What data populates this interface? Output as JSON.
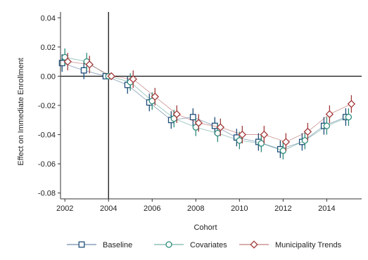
{
  "chart_data": {
    "type": "line",
    "xlabel": "Cohort",
    "ylabel": "Effect on Immediate Enrollment",
    "xlim": [
      2001.8,
      2015.6
    ],
    "ylim": [
      -0.084,
      0.044
    ],
    "xticks": [
      2002,
      2004,
      2006,
      2008,
      2010,
      2012,
      2014
    ],
    "yticks": [
      0.04,
      0.02,
      0.0,
      -0.02,
      -0.04,
      -0.06,
      -0.08
    ],
    "xtick_labels": [
      "2002",
      "2004",
      "2006",
      "2008",
      "2010",
      "2012",
      "2014"
    ],
    "ytick_labels": [
      "0.04",
      "0.02",
      "0.00",
      "-0.02",
      "-0.04",
      "-0.06",
      "-0.08"
    ],
    "reference_lines": {
      "vertical_x": 2004,
      "horizontal_y": 0
    },
    "grid": false,
    "legend_position": "bottom",
    "series": [
      {
        "name": "Baseline",
        "marker": "square",
        "color": "#1f4e79",
        "x": [
          2002,
          2003,
          2004,
          2005,
          2006,
          2007,
          2008,
          2009,
          2010,
          2011,
          2012,
          2013,
          2014,
          2015
        ],
        "y": [
          0.009,
          0.004,
          0.0,
          -0.006,
          -0.018,
          -0.03,
          -0.028,
          -0.034,
          -0.042,
          -0.045,
          -0.05,
          -0.045,
          -0.034,
          -0.028
        ],
        "ci": [
          0.006,
          0.006,
          0.0,
          0.006,
          0.006,
          0.006,
          0.006,
          0.006,
          0.006,
          0.006,
          0.006,
          0.006,
          0.006,
          0.006
        ]
      },
      {
        "name": "Covariates",
        "marker": "circle",
        "color": "#2e8b7a",
        "x": [
          2002,
          2003,
          2004,
          2005,
          2006,
          2007,
          2008,
          2009,
          2010,
          2011,
          2012,
          2013,
          2014,
          2015
        ],
        "y": [
          0.013,
          0.01,
          0.0,
          -0.004,
          -0.017,
          -0.029,
          -0.035,
          -0.039,
          -0.044,
          -0.046,
          -0.051,
          -0.044,
          -0.034,
          -0.028
        ],
        "ci": [
          0.006,
          0.006,
          0.0,
          0.006,
          0.006,
          0.006,
          0.006,
          0.006,
          0.006,
          0.006,
          0.006,
          0.006,
          0.006,
          0.006
        ]
      },
      {
        "name": "Municipality Trends",
        "marker": "diamond",
        "color": "#a33a3a",
        "x": [
          2002,
          2003,
          2004,
          2005,
          2006,
          2007,
          2008,
          2009,
          2010,
          2011,
          2012,
          2013,
          2014,
          2015
        ],
        "y": [
          0.01,
          0.008,
          0.0,
          -0.002,
          -0.014,
          -0.026,
          -0.032,
          -0.035,
          -0.04,
          -0.04,
          -0.045,
          -0.038,
          -0.026,
          -0.019
        ],
        "ci": [
          0.006,
          0.006,
          0.0,
          0.006,
          0.006,
          0.006,
          0.006,
          0.006,
          0.006,
          0.006,
          0.006,
          0.006,
          0.006,
          0.006
        ]
      }
    ]
  }
}
